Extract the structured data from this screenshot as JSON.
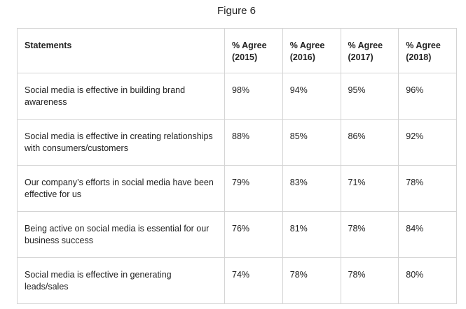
{
  "title": "Figure 6",
  "table": {
    "header": [
      "Statements",
      "% Agree\n(2015)",
      "% Agree\n(2016)",
      "% Agree\n(2017)",
      "% Agree\n(2018)"
    ],
    "rows": [
      [
        "Social media is effective in building brand awareness",
        "98%",
        "94%",
        "95%",
        "96%"
      ],
      [
        "Social media is effective in creating relationships with consumers/customers",
        "88%",
        "85%",
        "86%",
        "92%"
      ],
      [
        "Our company’s efforts in social media have been effective for us",
        "79%",
        "83%",
        "71%",
        "78%"
      ],
      [
        "Being active on social media is essential for our business success",
        "76%",
        "81%",
        "78%",
        "84%"
      ],
      [
        "Social media is effective in generating leads/sales",
        "74%",
        "78%",
        "78%",
        "80%"
      ]
    ]
  }
}
